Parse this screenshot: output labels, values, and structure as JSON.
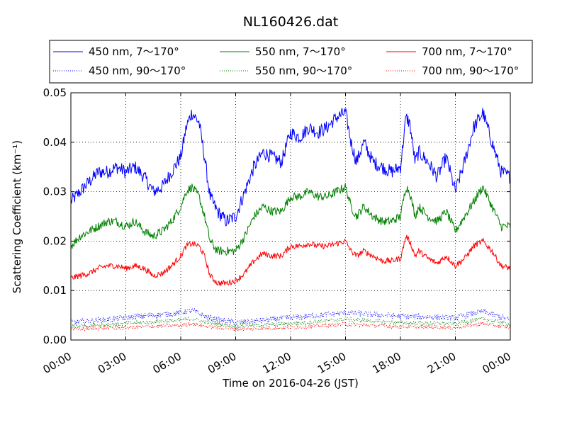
{
  "chart_data": {
    "type": "line",
    "title": "NL160426.dat",
    "xlabel": "Time on 2016-04-26 (JST)",
    "ylabel": "Scattering Coefficient (km⁻¹)",
    "x_start": "2016-04-26 00:00",
    "x_end": "2016-04-27 00:00",
    "xlim_hours": [
      0,
      24
    ],
    "ylim": [
      0,
      0.05
    ],
    "x_ticks": [
      "00:00",
      "03:00",
      "06:00",
      "09:00",
      "12:00",
      "15:00",
      "18:00",
      "21:00",
      "00:00"
    ],
    "y_ticks": [
      "0.00",
      "0.01",
      "0.02",
      "0.03",
      "0.04",
      "0.05"
    ],
    "grid": true,
    "legend_position": "top, above plot",
    "series": [
      {
        "name": "450 nm, 7～170°",
        "color": "#0000ff",
        "style": "solid",
        "noise": 0.0014,
        "x": [
          0,
          0.5,
          1,
          1.5,
          2,
          2.5,
          3,
          3.5,
          4,
          4.5,
          5,
          5.5,
          6,
          6.3,
          6.6,
          7,
          7.3,
          7.6,
          8,
          8.5,
          9,
          9.5,
          10,
          10.5,
          11,
          11.5,
          12,
          12.5,
          13,
          13.5,
          14,
          14.5,
          15,
          15.3,
          15.6,
          16,
          16.5,
          17,
          17.5,
          18,
          18.3,
          18.5,
          18.8,
          19,
          19.5,
          20,
          20.5,
          21,
          21.5,
          22,
          22.5,
          23,
          23.5,
          24
        ],
        "y": [
          0.028,
          0.03,
          0.032,
          0.034,
          0.034,
          0.035,
          0.034,
          0.035,
          0.033,
          0.03,
          0.031,
          0.034,
          0.037,
          0.043,
          0.046,
          0.044,
          0.037,
          0.029,
          0.026,
          0.024,
          0.025,
          0.03,
          0.035,
          0.038,
          0.037,
          0.036,
          0.042,
          0.041,
          0.043,
          0.042,
          0.043,
          0.045,
          0.046,
          0.04,
          0.036,
          0.04,
          0.036,
          0.035,
          0.034,
          0.035,
          0.045,
          0.044,
          0.036,
          0.038,
          0.036,
          0.033,
          0.037,
          0.03,
          0.036,
          0.043,
          0.046,
          0.04,
          0.034,
          0.033
        ]
      },
      {
        "name": "550 nm, 7～170°",
        "color": "#008000",
        "style": "solid",
        "noise": 0.0009,
        "x": [
          0,
          0.5,
          1,
          1.5,
          2,
          2.5,
          3,
          3.5,
          4,
          4.5,
          5,
          5.5,
          6,
          6.3,
          6.6,
          7,
          7.3,
          7.6,
          8,
          8.5,
          9,
          9.5,
          10,
          10.5,
          11,
          11.5,
          12,
          12.5,
          13,
          13.5,
          14,
          14.5,
          15,
          15.3,
          15.6,
          16,
          16.5,
          17,
          17.5,
          18,
          18.3,
          18.5,
          18.8,
          19,
          19.5,
          20,
          20.5,
          21,
          21.5,
          22,
          22.5,
          23,
          23.5,
          24
        ],
        "y": [
          0.019,
          0.021,
          0.022,
          0.023,
          0.024,
          0.024,
          0.023,
          0.024,
          0.022,
          0.021,
          0.022,
          0.024,
          0.027,
          0.03,
          0.031,
          0.029,
          0.025,
          0.02,
          0.018,
          0.018,
          0.018,
          0.021,
          0.025,
          0.027,
          0.026,
          0.026,
          0.029,
          0.029,
          0.03,
          0.029,
          0.029,
          0.03,
          0.031,
          0.027,
          0.025,
          0.027,
          0.025,
          0.024,
          0.024,
          0.025,
          0.031,
          0.03,
          0.025,
          0.027,
          0.025,
          0.024,
          0.026,
          0.022,
          0.025,
          0.028,
          0.031,
          0.027,
          0.023,
          0.023
        ]
      },
      {
        "name": "700 nm, 7～170°",
        "color": "#ff0000",
        "style": "solid",
        "noise": 0.0006,
        "x": [
          0,
          0.5,
          1,
          1.5,
          2,
          2.5,
          3,
          3.5,
          4,
          4.5,
          5,
          5.5,
          6,
          6.3,
          6.6,
          7,
          7.3,
          7.6,
          8,
          8.5,
          9,
          9.5,
          10,
          10.5,
          11,
          11.5,
          12,
          12.5,
          13,
          13.5,
          14,
          14.5,
          15,
          15.3,
          15.6,
          16,
          16.5,
          17,
          17.5,
          18,
          18.3,
          18.5,
          18.8,
          19,
          19.5,
          20,
          20.5,
          21,
          21.5,
          22,
          22.5,
          23,
          23.5,
          24
        ],
        "y": [
          0.0125,
          0.013,
          0.0135,
          0.0145,
          0.015,
          0.015,
          0.0145,
          0.015,
          0.0145,
          0.013,
          0.0135,
          0.015,
          0.017,
          0.019,
          0.0195,
          0.019,
          0.017,
          0.013,
          0.0115,
          0.0115,
          0.012,
          0.0135,
          0.016,
          0.0175,
          0.017,
          0.017,
          0.019,
          0.019,
          0.0195,
          0.019,
          0.019,
          0.0195,
          0.02,
          0.018,
          0.017,
          0.018,
          0.017,
          0.016,
          0.016,
          0.0165,
          0.021,
          0.02,
          0.017,
          0.018,
          0.0165,
          0.0155,
          0.017,
          0.015,
          0.0165,
          0.019,
          0.02,
          0.018,
          0.015,
          0.0145
        ]
      },
      {
        "name": "450 nm, 90～170°",
        "color": "#0000ff",
        "style": "dotted",
        "noise": 0.0006,
        "x": [
          0,
          3,
          6,
          6.6,
          7.5,
          9,
          12,
          15,
          18,
          21,
          22.5,
          24
        ],
        "y": [
          0.0035,
          0.0045,
          0.0055,
          0.006,
          0.0045,
          0.0035,
          0.0045,
          0.0055,
          0.0048,
          0.0045,
          0.0058,
          0.004
        ]
      },
      {
        "name": "550 nm, 90～170°",
        "color": "#008000",
        "style": "dotted",
        "noise": 0.0004,
        "x": [
          0,
          3,
          6,
          6.6,
          7.5,
          9,
          12,
          15,
          18,
          21,
          22.5,
          24
        ],
        "y": [
          0.0028,
          0.0033,
          0.004,
          0.0043,
          0.0035,
          0.0028,
          0.0033,
          0.0042,
          0.0035,
          0.0033,
          0.0043,
          0.0032
        ]
      },
      {
        "name": "700 nm, 90～170°",
        "color": "#ff0000",
        "style": "dotted",
        "noise": 0.0004,
        "x": [
          0,
          3,
          6,
          6.6,
          7.5,
          9,
          12,
          15,
          18,
          21,
          22.5,
          24
        ],
        "y": [
          0.0022,
          0.0025,
          0.003,
          0.0033,
          0.0027,
          0.0022,
          0.0025,
          0.0032,
          0.0027,
          0.0025,
          0.0033,
          0.0025
        ]
      }
    ]
  }
}
